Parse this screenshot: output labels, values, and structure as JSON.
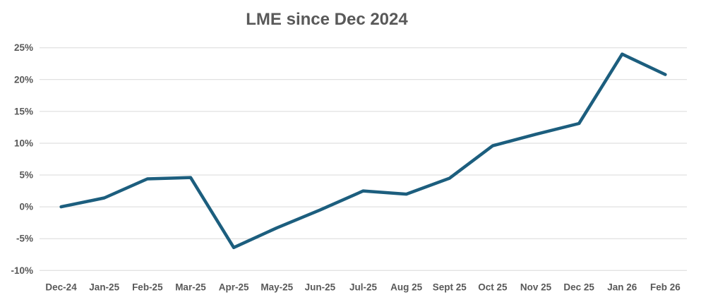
{
  "chart_data": {
    "type": "line",
    "title": "LME since Dec 2024",
    "categories": [
      "Dec-24",
      "Jan-25",
      "Feb-25",
      "Mar-25",
      "Apr-25",
      "May-25",
      "Jun-25",
      "Jul-25",
      "Aug 25",
      "Sept 25",
      "Oct 25",
      "Nov 25",
      "Dec 25",
      "Jan 26",
      "Feb 26"
    ],
    "series": [
      {
        "name": "LME",
        "values": [
          0.0,
          1.4,
          4.4,
          4.6,
          -6.4,
          -3.3,
          -0.5,
          2.5,
          2.0,
          4.5,
          9.6,
          11.4,
          13.1,
          24.0,
          20.8
        ]
      }
    ],
    "xlabel": "",
    "ylabel": "",
    "y_ticks": [
      "25%",
      "20%",
      "15%",
      "10%",
      "5%",
      "0%",
      "-5%",
      "-10%"
    ],
    "y_tick_values": [
      25,
      20,
      15,
      10,
      5,
      0,
      -5,
      -10
    ],
    "ylim": [
      -10,
      25
    ],
    "unit": "%",
    "grid": "horizontal",
    "legend": "none",
    "colors": {
      "line": "#1C5E7E",
      "gridline": "#D9D9D9",
      "tick_label": "#595959",
      "title": "#595959",
      "background": "#FFFFFF"
    }
  }
}
